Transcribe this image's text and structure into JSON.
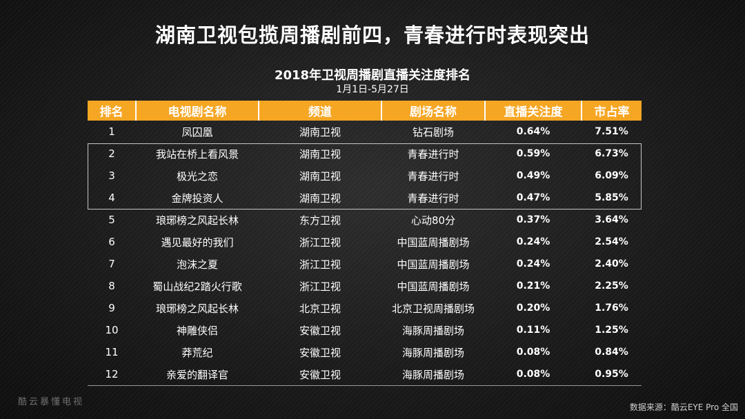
{
  "slide": {
    "title": "湖南卫视包揽周播剧前四，青春进行时表现突出",
    "watermark": "酷云暴懂电视",
    "source": "数据来源：酷云EYE Pro  全国"
  },
  "table": {
    "title": "2018年卫视周播剧直播关注度排名",
    "subtitle": "1月1日-5月27日",
    "headers": [
      "排名",
      "电视剧名称",
      "频道",
      "剧场名称",
      "直播关注度",
      "市占率"
    ],
    "rows": [
      [
        "1",
        "凤囚凰",
        "湖南卫视",
        "钻石剧场",
        "0.64%",
        "7.51%"
      ],
      [
        "2",
        "我站在桥上看风景",
        "湖南卫视",
        "青春进行时",
        "0.59%",
        "6.73%"
      ],
      [
        "3",
        "极光之恋",
        "湖南卫视",
        "青春进行时",
        "0.49%",
        "6.09%"
      ],
      [
        "4",
        "金牌投资人",
        "湖南卫视",
        "青春进行时",
        "0.47%",
        "5.85%"
      ],
      [
        "5",
        "琅琊榜之风起长林",
        "东方卫视",
        "心动80分",
        "0.37%",
        "3.64%"
      ],
      [
        "6",
        "遇见最好的我们",
        "浙江卫视",
        "中国蓝周播剧场",
        "0.24%",
        "2.54%"
      ],
      [
        "7",
        "泡沫之夏",
        "浙江卫视",
        "中国蓝周播剧场",
        "0.24%",
        "2.40%"
      ],
      [
        "8",
        "蜀山战纪2踏火行歌",
        "浙江卫视",
        "中国蓝周播剧场",
        "0.21%",
        "2.25%"
      ],
      [
        "9",
        "琅琊榜之风起长林",
        "北京卫视",
        "北京卫视周播剧场",
        "0.20%",
        "1.76%"
      ],
      [
        "10",
        "神雕侠侣",
        "安徽卫视",
        "海豚周播剧场",
        "0.11%",
        "1.25%"
      ],
      [
        "11",
        "莽荒纪",
        "安徽卫视",
        "海豚周播剧场",
        "0.08%",
        "0.84%"
      ],
      [
        "12",
        "亲爱的翻译官",
        "安徽卫视",
        "海豚周播剧场",
        "0.08%",
        "0.95%"
      ]
    ]
  },
  "colors": {
    "header_bg": "#f5a623",
    "text": "#ffffff",
    "background": "#1e1e1e"
  }
}
